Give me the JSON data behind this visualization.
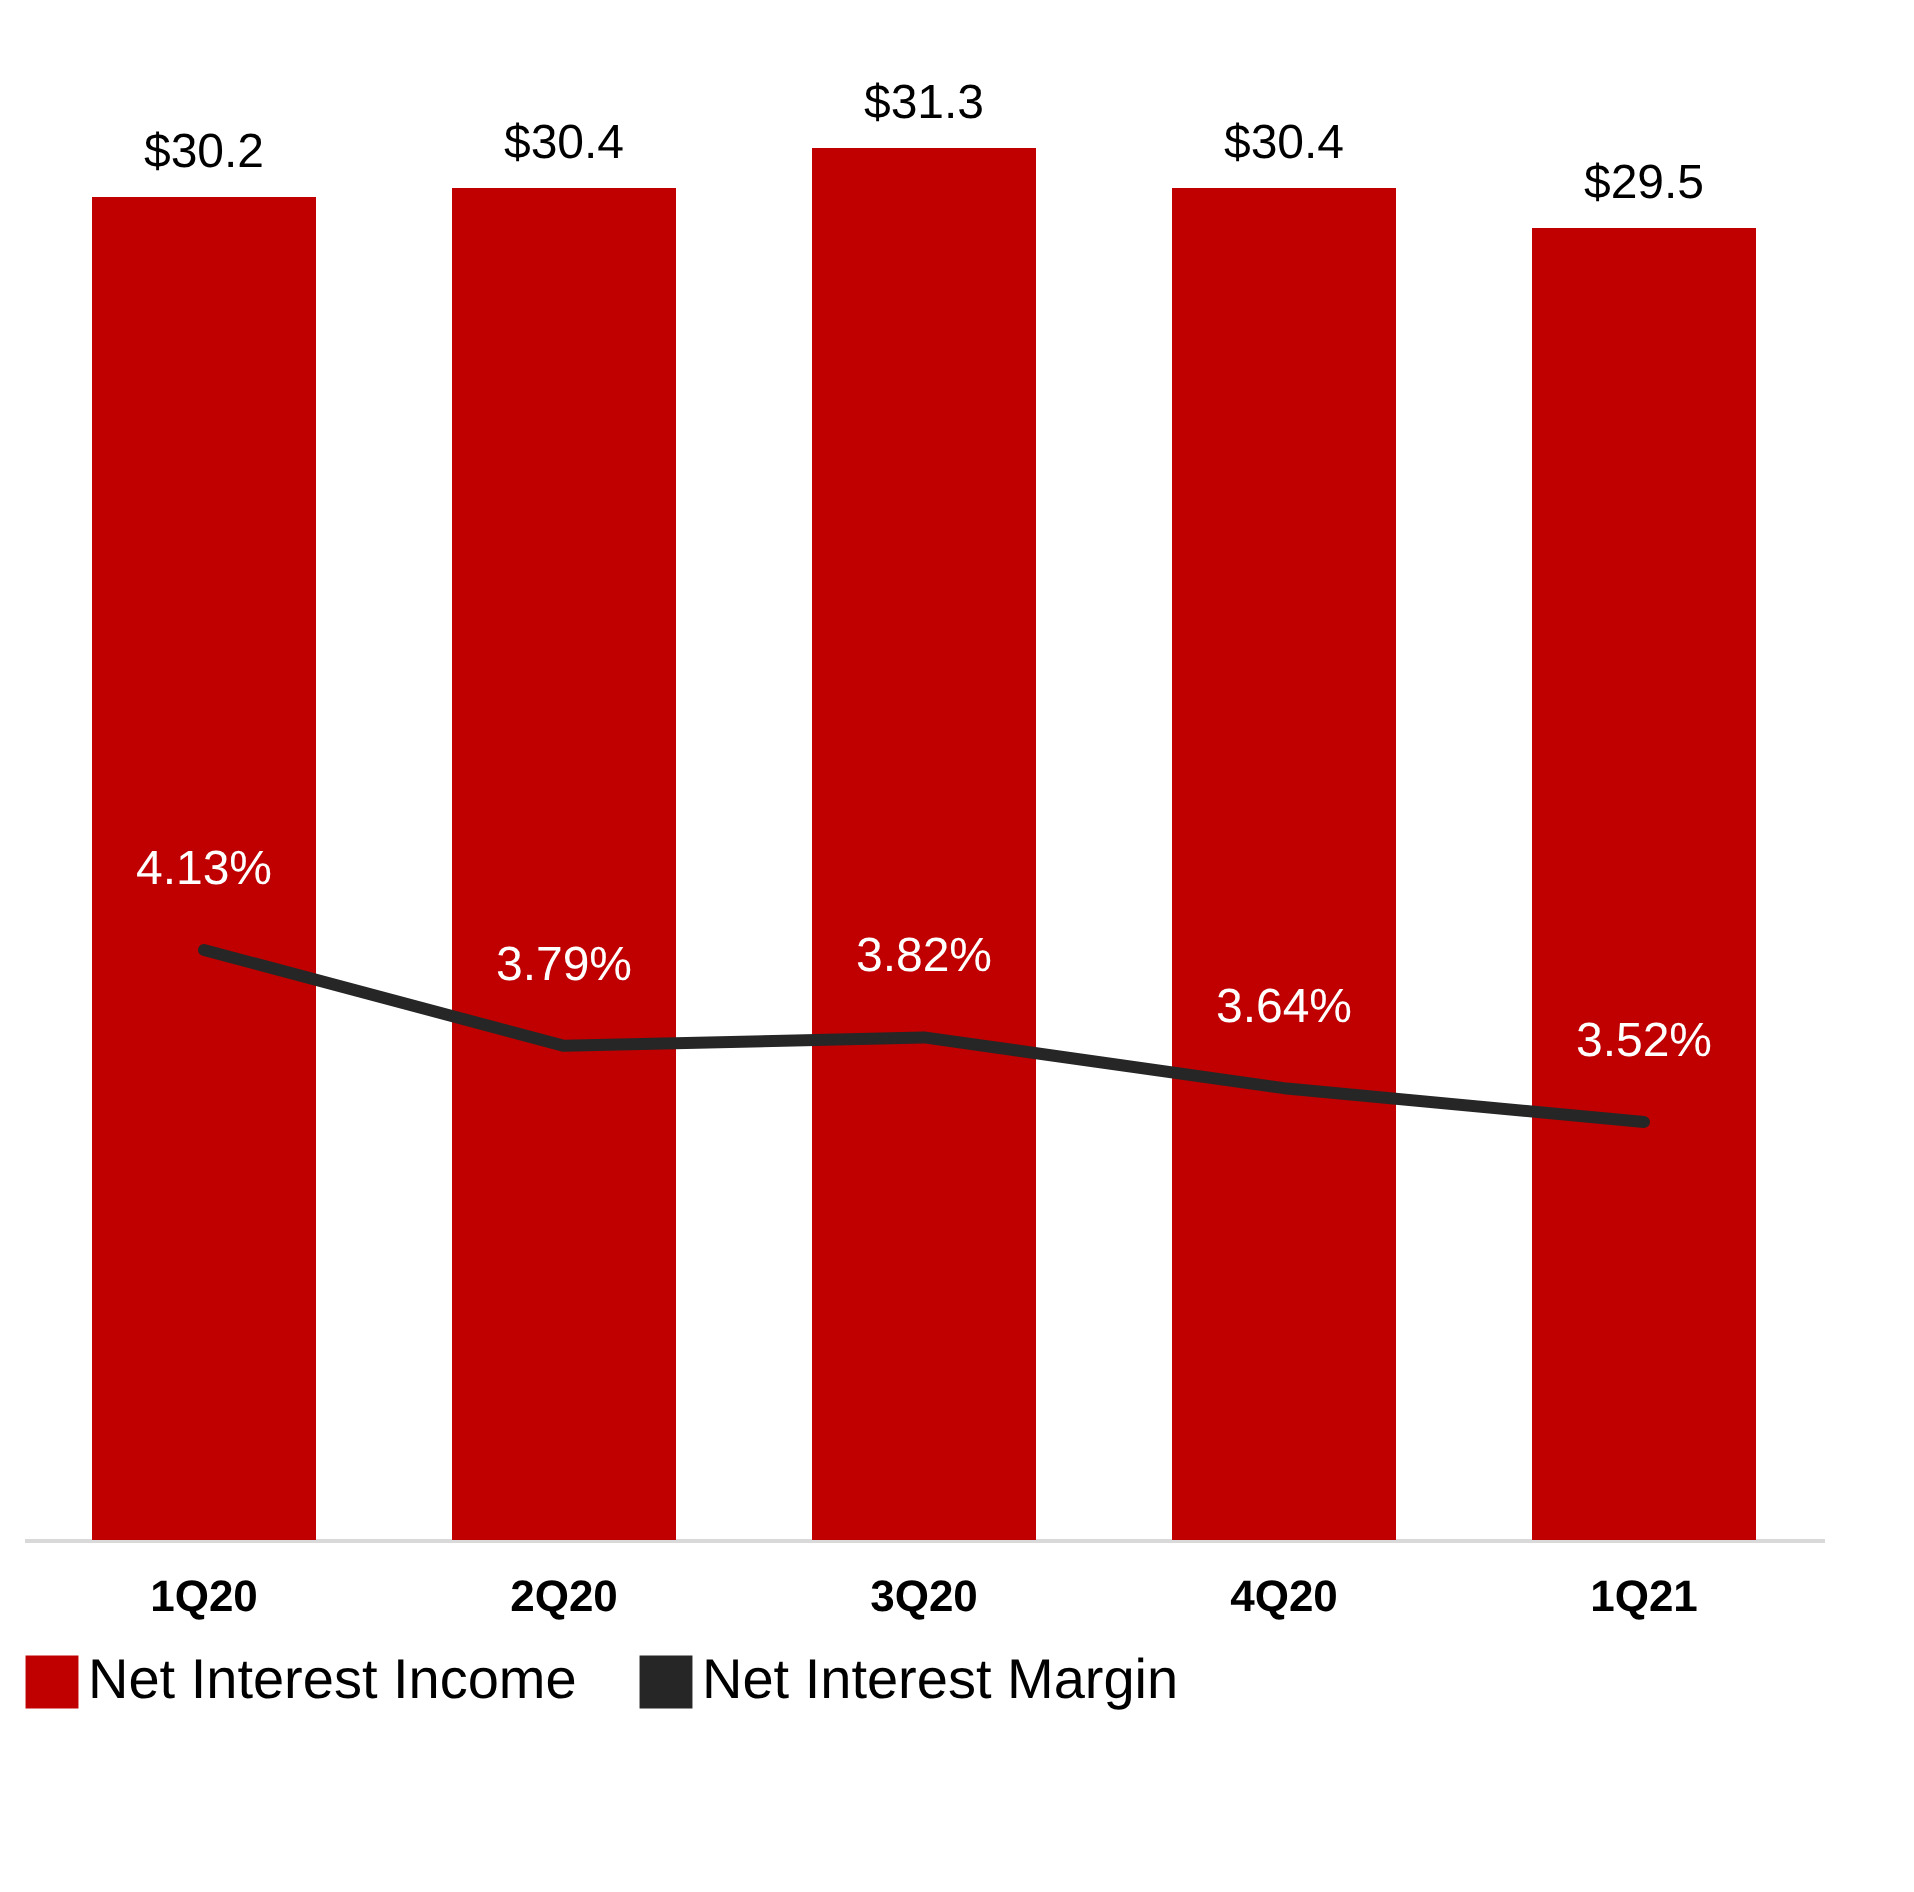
{
  "chart_data": {
    "type": "bar",
    "categories": [
      "1Q20",
      "2Q20",
      "3Q20",
      "4Q20",
      "1Q21"
    ],
    "series": [
      {
        "name": "Net Interest Income",
        "color": "#c00000",
        "values": [
          30.2,
          30.4,
          31.3,
          30.4,
          29.5
        ],
        "value_labels": [
          "$30.2",
          "$30.4",
          "$31.3",
          "$30.4",
          "$29.5"
        ]
      },
      {
        "name": "Net Interest Margin",
        "type": "line",
        "axis": "y2",
        "color": "#262626",
        "values": [
          4.13,
          3.79,
          3.82,
          3.64,
          3.52
        ],
        "value_labels": [
          "4.13%",
          "3.79%",
          "3.82%",
          "3.64%",
          "3.52%"
        ]
      }
    ],
    "tick_labels": "x",
    "grid": false,
    "legend": "bottom",
    "marker": "none",
    "line_style": "solid"
  }
}
